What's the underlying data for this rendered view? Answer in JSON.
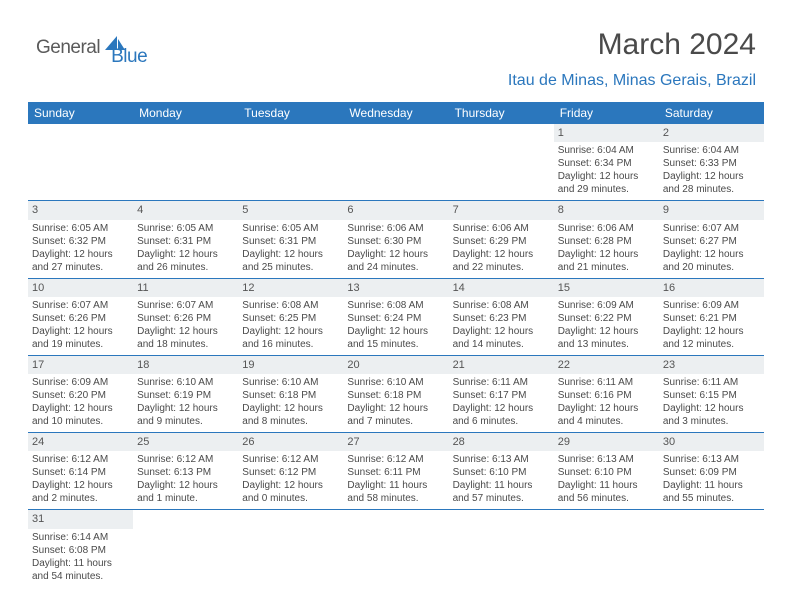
{
  "logo": {
    "text1": "General",
    "text2": "Blue"
  },
  "title": "March 2024",
  "location": "Itau de Minas, Minas Gerais, Brazil",
  "colors": {
    "brand_blue": "#2b77bd",
    "header_bg": "#2b77bd",
    "header_text": "#ffffff",
    "daynum_bg": "#eceff1",
    "body_text": "#4a4a4a",
    "page_bg": "#ffffff",
    "row_divider": "#2b77bd"
  },
  "typography": {
    "title_fontsize": 30,
    "location_fontsize": 16,
    "header_fontsize": 12,
    "cell_fontsize": 10,
    "daynum_fontsize": 11
  },
  "day_headers": [
    "Sunday",
    "Monday",
    "Tuesday",
    "Wednesday",
    "Thursday",
    "Friday",
    "Saturday"
  ],
  "weeks": [
    [
      {
        "n": "",
        "sr": "",
        "ss": "",
        "dl": ""
      },
      {
        "n": "",
        "sr": "",
        "ss": "",
        "dl": ""
      },
      {
        "n": "",
        "sr": "",
        "ss": "",
        "dl": ""
      },
      {
        "n": "",
        "sr": "",
        "ss": "",
        "dl": ""
      },
      {
        "n": "",
        "sr": "",
        "ss": "",
        "dl": ""
      },
      {
        "n": "1",
        "sr": "Sunrise: 6:04 AM",
        "ss": "Sunset: 6:34 PM",
        "dl": "Daylight: 12 hours and 29 minutes."
      },
      {
        "n": "2",
        "sr": "Sunrise: 6:04 AM",
        "ss": "Sunset: 6:33 PM",
        "dl": "Daylight: 12 hours and 28 minutes."
      }
    ],
    [
      {
        "n": "3",
        "sr": "Sunrise: 6:05 AM",
        "ss": "Sunset: 6:32 PM",
        "dl": "Daylight: 12 hours and 27 minutes."
      },
      {
        "n": "4",
        "sr": "Sunrise: 6:05 AM",
        "ss": "Sunset: 6:31 PM",
        "dl": "Daylight: 12 hours and 26 minutes."
      },
      {
        "n": "5",
        "sr": "Sunrise: 6:05 AM",
        "ss": "Sunset: 6:31 PM",
        "dl": "Daylight: 12 hours and 25 minutes."
      },
      {
        "n": "6",
        "sr": "Sunrise: 6:06 AM",
        "ss": "Sunset: 6:30 PM",
        "dl": "Daylight: 12 hours and 24 minutes."
      },
      {
        "n": "7",
        "sr": "Sunrise: 6:06 AM",
        "ss": "Sunset: 6:29 PM",
        "dl": "Daylight: 12 hours and 22 minutes."
      },
      {
        "n": "8",
        "sr": "Sunrise: 6:06 AM",
        "ss": "Sunset: 6:28 PM",
        "dl": "Daylight: 12 hours and 21 minutes."
      },
      {
        "n": "9",
        "sr": "Sunrise: 6:07 AM",
        "ss": "Sunset: 6:27 PM",
        "dl": "Daylight: 12 hours and 20 minutes."
      }
    ],
    [
      {
        "n": "10",
        "sr": "Sunrise: 6:07 AM",
        "ss": "Sunset: 6:26 PM",
        "dl": "Daylight: 12 hours and 19 minutes."
      },
      {
        "n": "11",
        "sr": "Sunrise: 6:07 AM",
        "ss": "Sunset: 6:26 PM",
        "dl": "Daylight: 12 hours and 18 minutes."
      },
      {
        "n": "12",
        "sr": "Sunrise: 6:08 AM",
        "ss": "Sunset: 6:25 PM",
        "dl": "Daylight: 12 hours and 16 minutes."
      },
      {
        "n": "13",
        "sr": "Sunrise: 6:08 AM",
        "ss": "Sunset: 6:24 PM",
        "dl": "Daylight: 12 hours and 15 minutes."
      },
      {
        "n": "14",
        "sr": "Sunrise: 6:08 AM",
        "ss": "Sunset: 6:23 PM",
        "dl": "Daylight: 12 hours and 14 minutes."
      },
      {
        "n": "15",
        "sr": "Sunrise: 6:09 AM",
        "ss": "Sunset: 6:22 PM",
        "dl": "Daylight: 12 hours and 13 minutes."
      },
      {
        "n": "16",
        "sr": "Sunrise: 6:09 AM",
        "ss": "Sunset: 6:21 PM",
        "dl": "Daylight: 12 hours and 12 minutes."
      }
    ],
    [
      {
        "n": "17",
        "sr": "Sunrise: 6:09 AM",
        "ss": "Sunset: 6:20 PM",
        "dl": "Daylight: 12 hours and 10 minutes."
      },
      {
        "n": "18",
        "sr": "Sunrise: 6:10 AM",
        "ss": "Sunset: 6:19 PM",
        "dl": "Daylight: 12 hours and 9 minutes."
      },
      {
        "n": "19",
        "sr": "Sunrise: 6:10 AM",
        "ss": "Sunset: 6:18 PM",
        "dl": "Daylight: 12 hours and 8 minutes."
      },
      {
        "n": "20",
        "sr": "Sunrise: 6:10 AM",
        "ss": "Sunset: 6:18 PM",
        "dl": "Daylight: 12 hours and 7 minutes."
      },
      {
        "n": "21",
        "sr": "Sunrise: 6:11 AM",
        "ss": "Sunset: 6:17 PM",
        "dl": "Daylight: 12 hours and 6 minutes."
      },
      {
        "n": "22",
        "sr": "Sunrise: 6:11 AM",
        "ss": "Sunset: 6:16 PM",
        "dl": "Daylight: 12 hours and 4 minutes."
      },
      {
        "n": "23",
        "sr": "Sunrise: 6:11 AM",
        "ss": "Sunset: 6:15 PM",
        "dl": "Daylight: 12 hours and 3 minutes."
      }
    ],
    [
      {
        "n": "24",
        "sr": "Sunrise: 6:12 AM",
        "ss": "Sunset: 6:14 PM",
        "dl": "Daylight: 12 hours and 2 minutes."
      },
      {
        "n": "25",
        "sr": "Sunrise: 6:12 AM",
        "ss": "Sunset: 6:13 PM",
        "dl": "Daylight: 12 hours and 1 minute."
      },
      {
        "n": "26",
        "sr": "Sunrise: 6:12 AM",
        "ss": "Sunset: 6:12 PM",
        "dl": "Daylight: 12 hours and 0 minutes."
      },
      {
        "n": "27",
        "sr": "Sunrise: 6:12 AM",
        "ss": "Sunset: 6:11 PM",
        "dl": "Daylight: 11 hours and 58 minutes."
      },
      {
        "n": "28",
        "sr": "Sunrise: 6:13 AM",
        "ss": "Sunset: 6:10 PM",
        "dl": "Daylight: 11 hours and 57 minutes."
      },
      {
        "n": "29",
        "sr": "Sunrise: 6:13 AM",
        "ss": "Sunset: 6:10 PM",
        "dl": "Daylight: 11 hours and 56 minutes."
      },
      {
        "n": "30",
        "sr": "Sunrise: 6:13 AM",
        "ss": "Sunset: 6:09 PM",
        "dl": "Daylight: 11 hours and 55 minutes."
      }
    ],
    [
      {
        "n": "31",
        "sr": "Sunrise: 6:14 AM",
        "ss": "Sunset: 6:08 PM",
        "dl": "Daylight: 11 hours and 54 minutes."
      },
      {
        "n": "",
        "sr": "",
        "ss": "",
        "dl": ""
      },
      {
        "n": "",
        "sr": "",
        "ss": "",
        "dl": ""
      },
      {
        "n": "",
        "sr": "",
        "ss": "",
        "dl": ""
      },
      {
        "n": "",
        "sr": "",
        "ss": "",
        "dl": ""
      },
      {
        "n": "",
        "sr": "",
        "ss": "",
        "dl": ""
      },
      {
        "n": "",
        "sr": "",
        "ss": "",
        "dl": ""
      }
    ]
  ]
}
